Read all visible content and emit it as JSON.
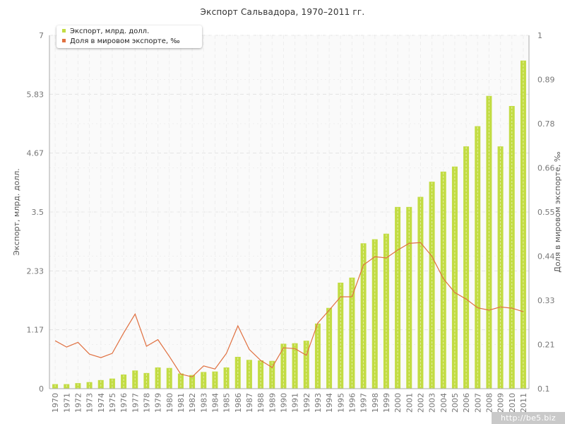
{
  "chart_data": {
    "type": "bar+line",
    "title": "Экспорт Сальвадора, 1970–2011 гг.",
    "ylabel": "Экспорт, млрд. долл.",
    "y2label": "Доля в мировом экспорте, ‰",
    "ylim": [
      0,
      7
    ],
    "y2lim": [
      0.1,
      1
    ],
    "yticks": [
      "0",
      "1.17",
      "2.33",
      "3.5",
      "4.67",
      "5.83",
      "7"
    ],
    "y2ticks": [
      "0.1",
      "0.21",
      "0.33",
      "0.44",
      "0.55",
      "0.66",
      "0.78",
      "0.89",
      "1"
    ],
    "categories": [
      "1970",
      "1971",
      "1972",
      "1973",
      "1974",
      "1975",
      "1976",
      "1977",
      "1978",
      "1979",
      "1980",
      "1981",
      "1982",
      "1983",
      "1984",
      "1985",
      "1986",
      "1987",
      "1988",
      "1989",
      "1990",
      "1991",
      "1992",
      "1993",
      "1994",
      "1995",
      "1996",
      "1997",
      "1998",
      "1999",
      "2000",
      "2001",
      "2002",
      "2003",
      "2004",
      "2005",
      "2006",
      "2007",
      "2008",
      "2009",
      "2010",
      "2011"
    ],
    "series": [
      {
        "name": "Экспорт, млрд. долл.",
        "type": "bar",
        "axis": "left",
        "color": "#c2dc43",
        "values": [
          0.09,
          0.09,
          0.11,
          0.13,
          0.17,
          0.2,
          0.28,
          0.36,
          0.31,
          0.42,
          0.41,
          0.3,
          0.27,
          0.33,
          0.34,
          0.42,
          0.63,
          0.57,
          0.56,
          0.55,
          0.89,
          0.9,
          0.95,
          1.29,
          1.6,
          2.1,
          2.2,
          2.88,
          2.96,
          3.07,
          3.6,
          3.6,
          3.8,
          4.1,
          4.3,
          4.4,
          4.8,
          5.2,
          5.8,
          4.8,
          5.6,
          6.5
        ]
      },
      {
        "name": "Доля в мировом экспорте, ‰",
        "type": "line",
        "axis": "right",
        "color": "#e07040",
        "values": [
          0.222,
          0.206,
          0.218,
          0.188,
          0.179,
          0.19,
          0.242,
          0.29,
          0.208,
          0.225,
          0.182,
          0.137,
          0.13,
          0.158,
          0.15,
          0.19,
          0.26,
          0.2,
          0.172,
          0.154,
          0.204,
          0.202,
          0.185,
          0.267,
          0.3,
          0.334,
          0.334,
          0.415,
          0.436,
          0.433,
          0.453,
          0.47,
          0.472,
          0.437,
          0.38,
          0.345,
          0.328,
          0.306,
          0.3,
          0.308,
          0.305,
          0.296
        ]
      }
    ],
    "legend_position": "top-left",
    "grid": true
  },
  "legend": {
    "items": [
      {
        "label": "Экспорт, млрд. долл.",
        "color": "#c2dc43"
      },
      {
        "label": "Доля в мировом экспорте, ‰",
        "color": "#e07040"
      }
    ]
  },
  "watermark": "http://be5.biz"
}
